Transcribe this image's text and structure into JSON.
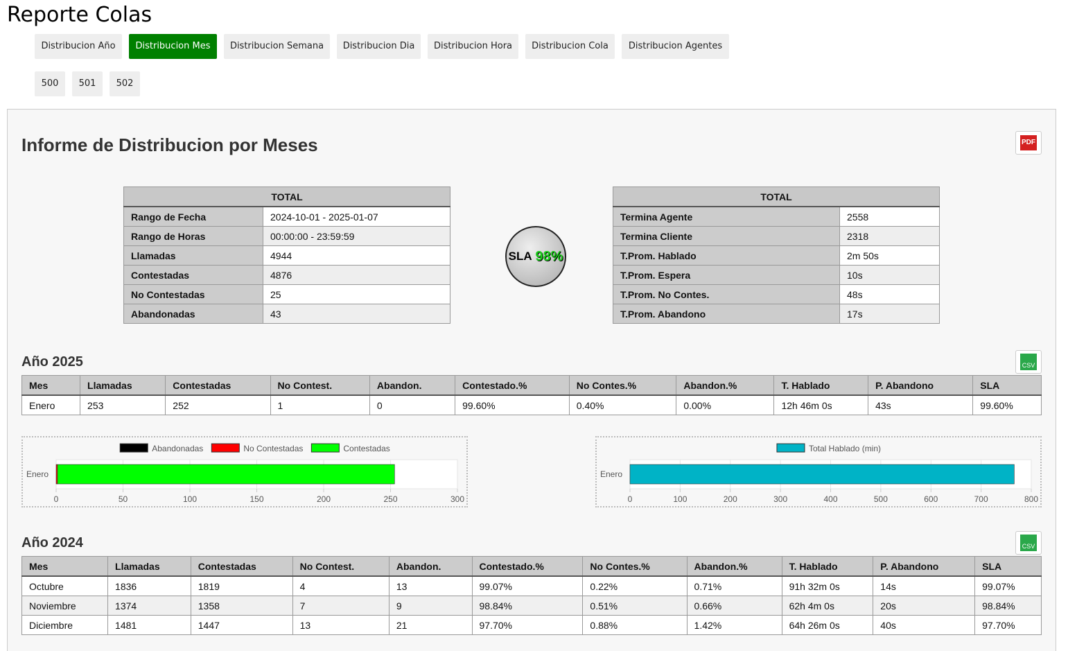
{
  "header": {
    "title": "Reporte Colas"
  },
  "tabs": [
    "Distribucion Año",
    "Distribucion Mes",
    "Distribucion Semana",
    "Distribucion Dia",
    "Distribucion Hora",
    "Distribucion Cola",
    "Distribucion Agentes"
  ],
  "active_tab": 1,
  "queues": [
    "500",
    "501",
    "502"
  ],
  "report": {
    "title": "Informe de Distribucion por Meses",
    "pdf_label": "PDF"
  },
  "summary_left": {
    "header": "TOTAL",
    "rows": [
      [
        "Rango de Fecha",
        "2024-10-01 - 2025-01-07"
      ],
      [
        "Rango de Horas",
        "00:00:00 - 23:59:59"
      ],
      [
        "Llamadas",
        4944
      ],
      [
        "Contestadas",
        4876
      ],
      [
        "No Contestadas",
        25
      ],
      [
        "Abandonadas",
        43
      ]
    ]
  },
  "sla": {
    "label": "SLA",
    "value": "98%"
  },
  "summary_right": {
    "header": "TOTAL",
    "rows": [
      [
        "Termina Agente",
        2558
      ],
      [
        "Termina Cliente",
        2318
      ],
      [
        "T.Prom. Hablado",
        "2m 50s"
      ],
      [
        "T.Prom. Espera",
        "10s"
      ],
      [
        "T.Prom. No Contes.",
        "48s"
      ],
      [
        "T.Prom. Abandono",
        "17s"
      ]
    ]
  },
  "years": [
    {
      "title": "Año 2025",
      "csv_label": "CSV",
      "table": {
        "columns": [
          "Mes",
          "Llamadas",
          "Contestadas",
          "No Contest.",
          "Abandon.",
          "Contestado.%",
          "No Contes.%",
          "Abandon.%",
          "T. Hablado",
          "P. Abandono",
          "SLA"
        ],
        "rows": [
          [
            "Enero",
            253,
            252,
            1,
            0,
            "99.60%",
            "0.40%",
            "0.00%",
            "12h 46m 0s",
            "43s",
            "99.60%"
          ]
        ]
      }
    },
    {
      "title": "Año 2024",
      "csv_label": "CSV",
      "table": {
        "columns": [
          "Mes",
          "Llamadas",
          "Contestadas",
          "No Contest.",
          "Abandon.",
          "Contestado.%",
          "No Contes.%",
          "Abandon.%",
          "T. Hablado",
          "P. Abandono",
          "SLA"
        ],
        "rows": [
          [
            "Octubre",
            1836,
            1819,
            4,
            13,
            "99.07%",
            "0.22%",
            "0.71%",
            "91h 32m 0s",
            "14s",
            "99.07%"
          ],
          [
            "Noviembre",
            1374,
            1358,
            7,
            9,
            "98.84%",
            "0.51%",
            "0.66%",
            "62h 4m 0s",
            "20s",
            "98.84%"
          ],
          [
            "Diciembre",
            1481,
            1447,
            13,
            21,
            "97.70%",
            "0.88%",
            "1.42%",
            "64h 26m 0s",
            "40s",
            "97.70%"
          ]
        ]
      }
    }
  ],
  "chart_data": [
    {
      "type": "bar",
      "orientation": "horizontal",
      "stacked": true,
      "categories": [
        "Enero"
      ],
      "series": [
        {
          "name": "Abandonadas",
          "color": "#000000",
          "values": [
            0
          ]
        },
        {
          "name": "No Contestadas",
          "color": "#ff0000",
          "values": [
            1
          ]
        },
        {
          "name": "Contestadas",
          "color": "#00ff00",
          "values": [
            252
          ]
        }
      ],
      "xlim": [
        0,
        300
      ],
      "xticks": [
        0,
        50,
        100,
        150,
        200,
        250,
        300
      ],
      "grid": true
    },
    {
      "type": "bar",
      "orientation": "horizontal",
      "stacked": false,
      "categories": [
        "Enero"
      ],
      "series": [
        {
          "name": "Total Hablado (min)",
          "color": "#00b3c6",
          "values": [
            766
          ]
        }
      ],
      "xlim": [
        0,
        800
      ],
      "xticks": [
        0,
        100,
        200,
        300,
        400,
        500,
        600,
        700,
        800
      ],
      "grid": true
    }
  ]
}
